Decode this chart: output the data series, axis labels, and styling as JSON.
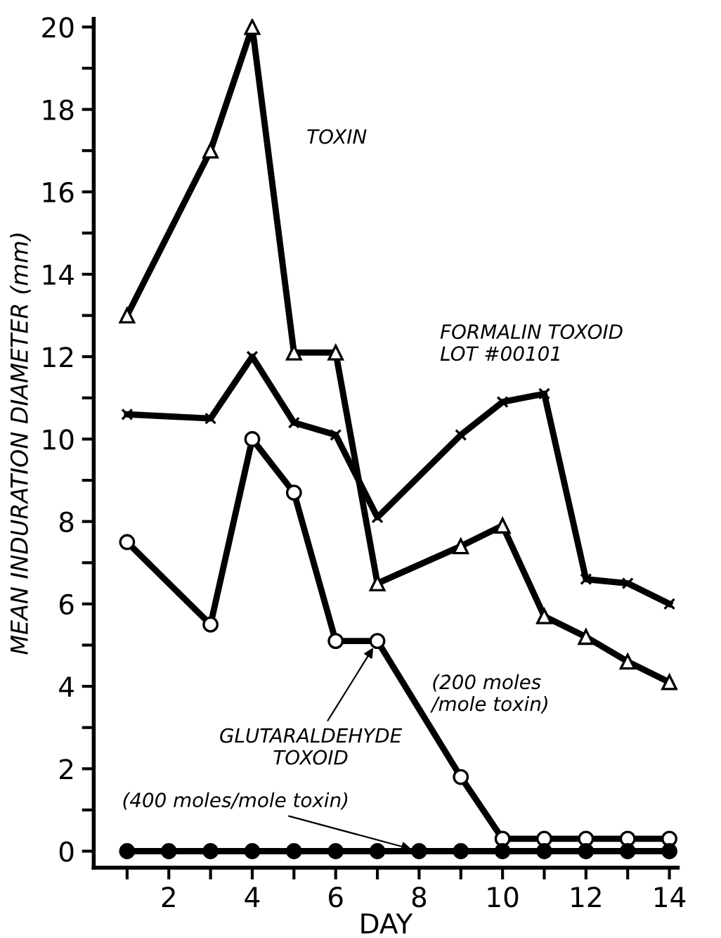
{
  "chart_data": {
    "type": "line",
    "xlabel": "DAY",
    "ylabel": "MEAN INDURATION DIAMETER (mm)",
    "xlim": [
      0.2,
      14.2
    ],
    "ylim": [
      -0.4,
      20.2
    ],
    "xticks": [
      {
        "value": 1,
        "label": null
      },
      2,
      {
        "value": 3,
        "label": null
      },
      4,
      {
        "value": 5,
        "label": null
      },
      6,
      {
        "value": 7,
        "label": null
      },
      8,
      {
        "value": 9,
        "label": null
      },
      10,
      {
        "value": 11,
        "label": null
      },
      12,
      {
        "value": 13,
        "label": null
      },
      14
    ],
    "yticks": [
      0,
      {
        "value": 1,
        "label": null
      },
      2,
      {
        "value": 3,
        "label": null
      },
      4,
      {
        "value": 5,
        "label": null
      },
      6,
      {
        "value": 7,
        "label": null
      },
      8,
      {
        "value": 9,
        "label": null
      },
      10,
      {
        "value": 11,
        "label": null
      },
      12,
      {
        "value": 13,
        "label": null
      },
      14,
      {
        "value": 15,
        "label": null
      },
      16,
      {
        "value": 17,
        "label": null
      },
      18,
      {
        "value": 19,
        "label": null
      },
      20
    ],
    "grid": false,
    "legend": false,
    "series": [
      {
        "name": "TOXIN",
        "color": "#000000",
        "marker": "triangle",
        "line_style": "solid",
        "x": [
          1,
          3,
          4,
          5,
          6,
          7,
          9,
          10,
          11,
          12,
          13,
          14
        ],
        "values": [
          13,
          17,
          20,
          12.1,
          12.1,
          6.5,
          7.4,
          7.9,
          5.7,
          5.2,
          4.6,
          4.1
        ]
      },
      {
        "name": "FORMALIN TOXOID\nLOT #00101",
        "color": "#000000",
        "marker": "cross",
        "line_style": "solid",
        "x": [
          1,
          3,
          4,
          5,
          6,
          7,
          9,
          10,
          11,
          12,
          13,
          14
        ],
        "values": [
          10.6,
          10.5,
          12,
          10.4,
          10.1,
          8.1,
          10.1,
          10.9,
          11.1,
          6.6,
          6.5,
          6.0
        ]
      },
      {
        "name": "(200 moles\n/mole toxin)",
        "color": "#000000",
        "marker": "circle",
        "line_style": "solid",
        "x": [
          1,
          3,
          4,
          5,
          6,
          7,
          9,
          10,
          11,
          12,
          13,
          14
        ],
        "values": [
          7.5,
          5.5,
          10,
          8.7,
          5.1,
          5.1,
          1.8,
          0.3,
          0.3,
          0.3,
          0.3,
          0.3
        ]
      },
      {
        "color": "#000000",
        "marker": "circle",
        "x": [
          1,
          2,
          3,
          4,
          5,
          6,
          7,
          8,
          9,
          10,
          11,
          12,
          13,
          14
        ],
        "values": [
          0,
          0,
          0,
          0,
          0,
          0,
          0,
          0,
          0,
          0,
          0,
          0,
          0,
          0
        ]
      }
    ],
    "annotations": [
      {
        "text": "GLUTARALDEHYDE\nTOXOID",
        "x": 7,
        "y": 5.1
      },
      {
        "text": "(400 moles/mole toxin)",
        "x": 8,
        "y": 0
      }
    ]
  }
}
